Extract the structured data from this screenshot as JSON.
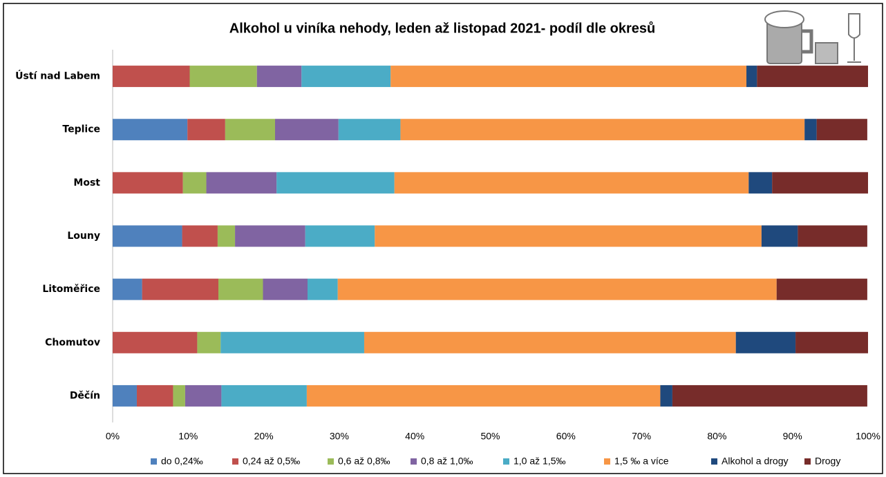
{
  "chart_data": {
    "type": "stacked_bar_horizontal",
    "title": "Alkohol u viníka nehody, leden až listopad 2021- podíl dle okresů",
    "categories": [
      "Ústí nad Labem",
      "Teplice",
      "Most",
      "Louny",
      "Litoměřice",
      "Chomutov",
      "Děčín"
    ],
    "series": [
      {
        "name": "do 0,24‰",
        "color": "#4f81bd",
        "values": [
          0,
          9.9,
          0,
          9.2,
          3.9,
          0,
          3.2
        ]
      },
      {
        "name": "0,24 až 0,5‰",
        "color": "#c0504d",
        "values": [
          10.2,
          5.0,
          9.3,
          4.7,
          10.1,
          11.2,
          4.8
        ]
      },
      {
        "name": "0,6 až 0,8‰",
        "color": "#9bbb59",
        "values": [
          8.9,
          6.6,
          3.1,
          2.3,
          5.9,
          3.1,
          1.6
        ]
      },
      {
        "name": "0,8 až 1,0‰",
        "color": "#8064a2",
        "values": [
          5.9,
          8.4,
          9.3,
          9.3,
          5.9,
          0,
          4.8
        ]
      },
      {
        "name": "1,0 až 1,5‰",
        "color": "#4bacc6",
        "values": [
          11.8,
          8.2,
          15.6,
          9.2,
          4.0,
          19.0,
          11.3
        ]
      },
      {
        "name": "1,5 ‰ a více",
        "color": "#f79646",
        "values": [
          47.1,
          53.5,
          46.9,
          51.2,
          58.1,
          49.2,
          46.8
        ]
      },
      {
        "name": "Alkohol a drogy",
        "color": "#1f497d",
        "values": [
          1.4,
          1.6,
          3.1,
          4.8,
          0,
          7.9,
          1.6
        ]
      },
      {
        "name": "Drogy",
        "color": "#772c2a",
        "values": [
          14.7,
          6.7,
          12.7,
          9.2,
          12.0,
          9.6,
          25.8
        ]
      }
    ],
    "xlim": [
      0,
      100
    ],
    "xticks": [
      {
        "value": 0,
        "label": "0%"
      },
      {
        "value": 10,
        "label": "10%"
      },
      {
        "value": 20,
        "label": "20%"
      },
      {
        "value": 30,
        "label": "30%"
      },
      {
        "value": 40,
        "label": "40%"
      },
      {
        "value": 50,
        "label": "50%"
      },
      {
        "value": 60,
        "label": "60%"
      },
      {
        "value": 70,
        "label": "70%"
      },
      {
        "value": 80,
        "label": "80%"
      },
      {
        "value": 90,
        "label": "90%"
      },
      {
        "value": 100,
        "label": "100%"
      }
    ],
    "grid": false,
    "legend": "bottom"
  }
}
